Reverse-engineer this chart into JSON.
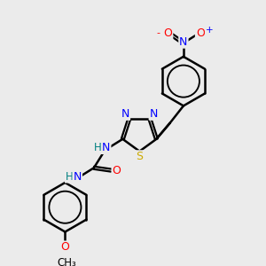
{
  "bg_color": "#ebebeb",
  "atom_colors": {
    "C": "#000000",
    "N": "#0000ff",
    "O": "#ff0000",
    "S": "#ccaa00",
    "H": "#008080"
  },
  "bond_color": "#000000",
  "bond_width": 1.8,
  "figsize": [
    3.0,
    3.0
  ],
  "dpi": 100
}
